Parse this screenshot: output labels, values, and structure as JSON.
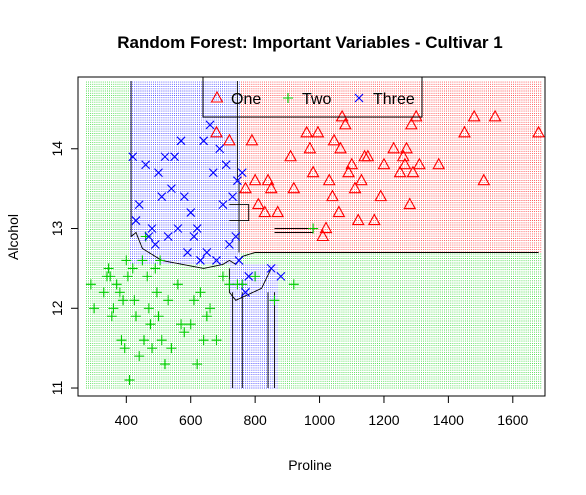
{
  "chart_data": {
    "type": "scatter",
    "title": "Random Forest: Important Variables - Cultivar 1",
    "xlabel": "Proline",
    "ylabel": "Alcohol",
    "xlim": [
      250,
      1700
    ],
    "ylim": [
      10.9,
      14.9
    ],
    "xticks": [
      400,
      600,
      800,
      1000,
      1200,
      1400,
      1600
    ],
    "yticks": [
      11,
      12,
      13,
      14
    ],
    "legend": {
      "position": "top-center"
    },
    "colors": {
      "One": "#ff0000",
      "Two": "#00cd00",
      "Three": "#0000ff"
    },
    "series": [
      {
        "name": "One",
        "marker": "triangle",
        "points": [
          [
            680,
            14.2
          ],
          [
            720,
            14.1
          ],
          [
            770,
            13.5
          ],
          [
            790,
            14.1
          ],
          [
            800,
            13.6
          ],
          [
            810,
            13.3
          ],
          [
            830,
            13.2
          ],
          [
            840,
            13.6
          ],
          [
            850,
            13.5
          ],
          [
            870,
            13.2
          ],
          [
            910,
            13.9
          ],
          [
            920,
            13.5
          ],
          [
            960,
            14.2
          ],
          [
            970,
            14.0
          ],
          [
            980,
            13.7
          ],
          [
            995,
            14.2
          ],
          [
            1010,
            12.9
          ],
          [
            1020,
            13.0
          ],
          [
            1030,
            13.6
          ],
          [
            1040,
            13.4
          ],
          [
            1045,
            14.1
          ],
          [
            1060,
            13.2
          ],
          [
            1065,
            14.0
          ],
          [
            1070,
            14.4
          ],
          [
            1080,
            14.3
          ],
          [
            1090,
            13.7
          ],
          [
            1100,
            13.8
          ],
          [
            1110,
            13.5
          ],
          [
            1120,
            13.1
          ],
          [
            1130,
            13.6
          ],
          [
            1140,
            13.9
          ],
          [
            1150,
            13.9
          ],
          [
            1170,
            13.1
          ],
          [
            1190,
            13.4
          ],
          [
            1200,
            13.8
          ],
          [
            1230,
            14.0
          ],
          [
            1250,
            13.7
          ],
          [
            1260,
            13.9
          ],
          [
            1265,
            13.8
          ],
          [
            1270,
            14.0
          ],
          [
            1280,
            13.3
          ],
          [
            1285,
            14.3
          ],
          [
            1290,
            13.7
          ],
          [
            1300,
            14.4
          ],
          [
            1310,
            13.8
          ],
          [
            1370,
            13.8
          ],
          [
            1450,
            14.2
          ],
          [
            1480,
            14.4
          ],
          [
            1510,
            13.6
          ],
          [
            1545,
            14.4
          ],
          [
            1680,
            14.2
          ]
        ]
      },
      {
        "name": "Two",
        "marker": "plus",
        "points": [
          [
            290,
            12.3
          ],
          [
            300,
            12.0
          ],
          [
            330,
            12.2
          ],
          [
            340,
            12.4
          ],
          [
            345,
            12.5
          ],
          [
            350,
            12.4
          ],
          [
            355,
            11.9
          ],
          [
            360,
            12.0
          ],
          [
            370,
            12.3
          ],
          [
            380,
            12.2
          ],
          [
            385,
            11.6
          ],
          [
            390,
            12.1
          ],
          [
            395,
            11.5
          ],
          [
            400,
            12.6
          ],
          [
            405,
            12.4
          ],
          [
            410,
            11.1
          ],
          [
            420,
            12.5
          ],
          [
            425,
            12.1
          ],
          [
            430,
            11.9
          ],
          [
            440,
            11.4
          ],
          [
            450,
            12.6
          ],
          [
            455,
            11.6
          ],
          [
            460,
            12.9
          ],
          [
            465,
            12.4
          ],
          [
            470,
            12.0
          ],
          [
            475,
            11.8
          ],
          [
            480,
            11.5
          ],
          [
            490,
            12.5
          ],
          [
            495,
            12.2
          ],
          [
            500,
            11.9
          ],
          [
            505,
            12.6
          ],
          [
            510,
            11.6
          ],
          [
            520,
            11.3
          ],
          [
            530,
            12.1
          ],
          [
            540,
            11.5
          ],
          [
            560,
            12.3
          ],
          [
            570,
            11.8
          ],
          [
            580,
            11.7
          ],
          [
            600,
            11.8
          ],
          [
            610,
            12.1
          ],
          [
            620,
            11.3
          ],
          [
            630,
            12.2
          ],
          [
            640,
            11.6
          ],
          [
            650,
            11.9
          ],
          [
            660,
            12.0
          ],
          [
            680,
            11.6
          ],
          [
            700,
            12.4
          ],
          [
            720,
            12.3
          ],
          [
            745,
            12.3
          ],
          [
            760,
            12.3
          ],
          [
            800,
            12.4
          ],
          [
            860,
            12.1
          ],
          [
            920,
            12.3
          ],
          [
            980,
            13.0
          ]
        ]
      },
      {
        "name": "Three",
        "marker": "x",
        "points": [
          [
            420,
            13.9
          ],
          [
            430,
            13.1
          ],
          [
            440,
            13.3
          ],
          [
            460,
            13.8
          ],
          [
            470,
            12.9
          ],
          [
            480,
            13.0
          ],
          [
            490,
            12.8
          ],
          [
            500,
            13.7
          ],
          [
            510,
            13.4
          ],
          [
            520,
            13.9
          ],
          [
            530,
            12.9
          ],
          [
            540,
            13.5
          ],
          [
            550,
            13.9
          ],
          [
            560,
            13.0
          ],
          [
            570,
            14.1
          ],
          [
            580,
            13.4
          ],
          [
            590,
            12.7
          ],
          [
            600,
            13.2
          ],
          [
            610,
            12.9
          ],
          [
            620,
            13.0
          ],
          [
            630,
            12.6
          ],
          [
            640,
            14.1
          ],
          [
            650,
            12.7
          ],
          [
            660,
            14.3
          ],
          [
            670,
            13.7
          ],
          [
            680,
            12.6
          ],
          [
            690,
            14.0
          ],
          [
            700,
            13.3
          ],
          [
            710,
            13.8
          ],
          [
            720,
            12.8
          ],
          [
            730,
            13.4
          ],
          [
            740,
            12.9
          ],
          [
            745,
            13.6
          ],
          [
            750,
            12.6
          ],
          [
            760,
            13.7
          ],
          [
            770,
            12.2
          ],
          [
            780,
            12.4
          ],
          [
            850,
            12.5
          ],
          [
            880,
            12.4
          ]
        ]
      }
    ]
  }
}
